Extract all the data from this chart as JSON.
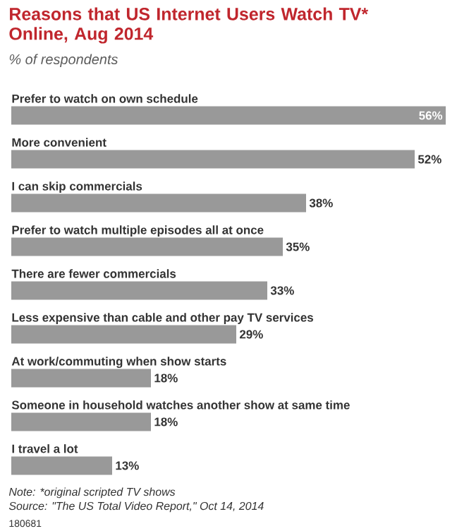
{
  "chart_data": {
    "type": "bar",
    "orientation": "horizontal",
    "title": "Reasons that US Internet Users Watch TV* Online, Aug 2014",
    "subtitle": "% of respondents",
    "categories": [
      "Prefer to watch on own schedule",
      "More convenient",
      "I can skip commercials",
      "Prefer to watch multiple episodes all at once",
      "There are fewer commercials",
      "Less expensive than cable and other pay TV services",
      "At work/commuting when show starts",
      "Someone in household watches another show at same time",
      "I travel a lot"
    ],
    "values": [
      56,
      52,
      38,
      35,
      33,
      29,
      18,
      18,
      13
    ],
    "value_labels": [
      "56%",
      "52%",
      "38%",
      "35%",
      "33%",
      "29%",
      "18%",
      "18%",
      "13%"
    ],
    "color": "#999999",
    "annotations": [
      "Note: *original scripted TV shows",
      "Source: \"The US Total Video Report,\" Oct 14, 2014",
      "180681"
    ]
  }
}
